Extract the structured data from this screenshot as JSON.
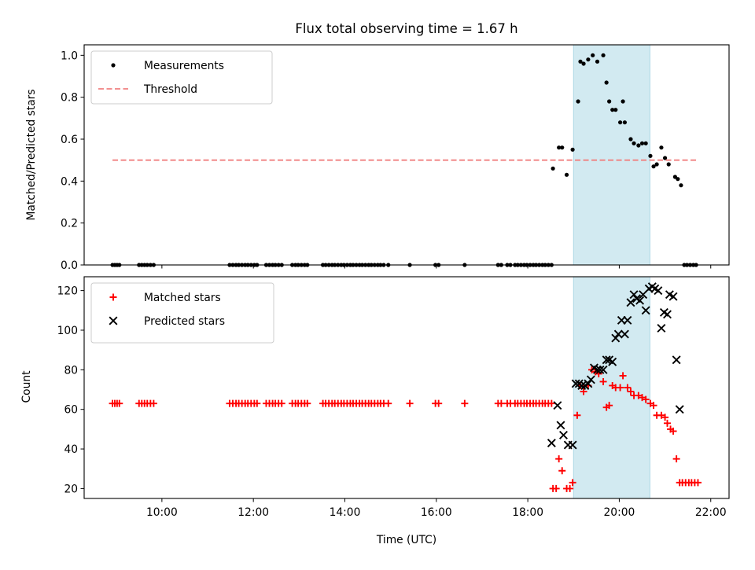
{
  "chart_data": [
    {
      "type": "scatter",
      "title": "Flux total observing time = 1.67 h",
      "xlabel": "",
      "ylabel": "Matched/Predicted stars",
      "xlim": [
        8.3,
        22.4
      ],
      "ylim": [
        0,
        1.05
      ],
      "yticks": [
        {
          "v": 0.0,
          "label": "0.0"
        },
        {
          "v": 0.2,
          "label": "0.2"
        },
        {
          "v": 0.4,
          "label": "0.4"
        },
        {
          "v": 0.6,
          "label": "0.6"
        },
        {
          "v": 0.8,
          "label": "0.8"
        },
        {
          "v": 1.0,
          "label": "1.0"
        }
      ],
      "shaded_interval": {
        "x": [
          19.0,
          20.67
        ],
        "color": "#add8e6"
      },
      "legend_position": "upper-left",
      "series": [
        {
          "name": "Measurements",
          "kind": "scatter",
          "marker": "dot",
          "color": "#000000",
          "x": [
            8.92,
            8.97,
            9.02,
            9.07,
            9.5,
            9.56,
            9.62,
            9.68,
            9.75,
            9.82,
            11.48,
            11.55,
            11.62,
            11.68,
            11.75,
            11.82,
            11.88,
            11.95,
            12.02,
            12.08,
            12.28,
            12.35,
            12.42,
            12.48,
            12.55,
            12.62,
            12.85,
            12.92,
            12.98,
            13.05,
            13.12,
            13.18,
            13.52,
            13.58,
            13.65,
            13.72,
            13.78,
            13.85,
            13.92,
            13.98,
            14.05,
            14.12,
            14.18,
            14.25,
            14.32,
            14.38,
            14.45,
            14.52,
            14.58,
            14.65,
            14.72,
            14.78,
            14.85,
            14.95,
            15.42,
            15.98,
            16.05,
            16.62,
            17.35,
            17.42,
            17.55,
            17.62,
            17.72,
            17.78,
            17.85,
            17.92,
            17.98,
            18.05,
            18.12,
            18.18,
            18.25,
            18.32,
            18.38,
            18.45,
            18.52,
            18.55,
            18.68,
            18.75,
            18.85,
            18.98,
            19.1,
            19.15,
            19.22,
            19.32,
            19.42,
            19.52,
            19.65,
            19.72,
            19.78,
            19.85,
            19.92,
            20.02,
            20.08,
            20.12,
            20.25,
            20.32,
            20.42,
            20.5,
            20.58,
            20.68,
            20.75,
            20.82,
            20.92,
            21.0,
            21.08,
            21.22,
            21.28,
            21.35,
            21.42,
            21.48,
            21.55,
            21.62,
            21.68
          ],
          "y": [
            0,
            0,
            0,
            0,
            0,
            0,
            0,
            0,
            0,
            0,
            0,
            0,
            0,
            0,
            0,
            0,
            0,
            0,
            0,
            0,
            0,
            0,
            0,
            0,
            0,
            0,
            0,
            0,
            0,
            0,
            0,
            0,
            0,
            0,
            0,
            0,
            0,
            0,
            0,
            0,
            0,
            0,
            0,
            0,
            0,
            0,
            0,
            0,
            0,
            0,
            0,
            0,
            0,
            0,
            0,
            0,
            0,
            0,
            0,
            0,
            0,
            0,
            0,
            0,
            0,
            0,
            0,
            0,
            0,
            0,
            0,
            0,
            0,
            0,
            0,
            0.46,
            0.56,
            0.56,
            0.43,
            0.55,
            0.78,
            0.97,
            0.96,
            0.98,
            1.0,
            0.97,
            1.0,
            0.87,
            0.78,
            0.74,
            0.74,
            0.68,
            0.78,
            0.68,
            0.6,
            0.58,
            0.57,
            0.58,
            0.58,
            0.52,
            0.47,
            0.48,
            0.56,
            0.51,
            0.48,
            0.42,
            0.41,
            0.38,
            0,
            0,
            0,
            0,
            0
          ]
        },
        {
          "name": "Threshold",
          "kind": "line",
          "style": "dashed",
          "color": "#f08080",
          "x": [
            8.92,
            21.72
          ],
          "y": [
            0.5,
            0.5
          ]
        }
      ]
    },
    {
      "type": "scatter",
      "title": "",
      "xlabel": "Time (UTC)",
      "ylabel": "Count",
      "xlim": [
        8.3,
        22.4
      ],
      "ylim": [
        15,
        127
      ],
      "xticks": [
        {
          "v": 10,
          "label": "10:00"
        },
        {
          "v": 12,
          "label": "12:00"
        },
        {
          "v": 14,
          "label": "14:00"
        },
        {
          "v": 16,
          "label": "16:00"
        },
        {
          "v": 18,
          "label": "18:00"
        },
        {
          "v": 20,
          "label": "20:00"
        },
        {
          "v": 22,
          "label": "22:00"
        }
      ],
      "yticks": [
        {
          "v": 20,
          "label": "20"
        },
        {
          "v": 40,
          "label": "40"
        },
        {
          "v": 60,
          "label": "60"
        },
        {
          "v": 80,
          "label": "80"
        },
        {
          "v": 100,
          "label": "100"
        },
        {
          "v": 120,
          "label": "120"
        }
      ],
      "shaded_interval": {
        "x": [
          19.0,
          20.67
        ],
        "color": "#add8e6"
      },
      "legend_position": "upper-left",
      "series": [
        {
          "name": "Matched stars",
          "kind": "scatter",
          "marker": "plus",
          "color": "#ff0000",
          "x": [
            8.92,
            8.97,
            9.02,
            9.07,
            9.5,
            9.56,
            9.62,
            9.68,
            9.75,
            9.82,
            11.48,
            11.55,
            11.62,
            11.68,
            11.75,
            11.82,
            11.88,
            11.95,
            12.02,
            12.08,
            12.28,
            12.35,
            12.42,
            12.48,
            12.55,
            12.62,
            12.85,
            12.92,
            12.98,
            13.05,
            13.12,
            13.18,
            13.52,
            13.58,
            13.65,
            13.72,
            13.78,
            13.85,
            13.92,
            13.98,
            14.05,
            14.12,
            14.18,
            14.25,
            14.32,
            14.38,
            14.45,
            14.52,
            14.58,
            14.65,
            14.72,
            14.78,
            14.85,
            14.95,
            15.42,
            15.98,
            16.05,
            16.62,
            17.35,
            17.42,
            17.55,
            17.62,
            17.72,
            17.78,
            17.85,
            17.92,
            17.98,
            18.05,
            18.12,
            18.18,
            18.25,
            18.32,
            18.38,
            18.45,
            18.52,
            18.55,
            18.62,
            18.68,
            18.75,
            18.85,
            18.92,
            18.98,
            19.08,
            19.15,
            19.22,
            19.32,
            19.4,
            19.48,
            19.55,
            19.65,
            19.72,
            19.78,
            19.85,
            19.92,
            20.02,
            20.08,
            20.18,
            20.25,
            20.32,
            20.42,
            20.5,
            20.58,
            20.68,
            20.75,
            20.82,
            20.92,
            21.0,
            21.05,
            21.12,
            21.18,
            21.25,
            21.32,
            21.38,
            21.45,
            21.52,
            21.58,
            21.65,
            21.72
          ],
          "y": [
            63,
            63,
            63,
            63,
            63,
            63,
            63,
            63,
            63,
            63,
            63,
            63,
            63,
            63,
            63,
            63,
            63,
            63,
            63,
            63,
            63,
            63,
            63,
            63,
            63,
            63,
            63,
            63,
            63,
            63,
            63,
            63,
            63,
            63,
            63,
            63,
            63,
            63,
            63,
            63,
            63,
            63,
            63,
            63,
            63,
            63,
            63,
            63,
            63,
            63,
            63,
            63,
            63,
            63,
            63,
            63,
            63,
            63,
            63,
            63,
            63,
            63,
            63,
            63,
            63,
            63,
            63,
            63,
            63,
            63,
            63,
            63,
            63,
            63,
            63,
            20,
            20,
            35,
            29,
            20,
            20,
            23,
            57,
            72,
            69,
            72,
            80,
            79,
            78,
            74,
            61,
            62,
            72,
            71,
            71,
            77,
            71,
            69,
            67,
            67,
            66,
            65,
            63,
            62,
            57,
            57,
            56,
            53,
            50,
            49,
            35,
            23,
            23,
            23,
            23,
            23,
            23,
            23
          ]
        },
        {
          "name": "Predicted stars",
          "kind": "scatter",
          "marker": "x",
          "color": "#000000",
          "x": [
            18.52,
            18.65,
            18.72,
            18.78,
            18.88,
            18.98,
            19.05,
            19.12,
            19.18,
            19.25,
            19.32,
            19.38,
            19.45,
            19.52,
            19.58,
            19.65,
            19.72,
            19.78,
            19.85,
            19.92,
            19.98,
            20.05,
            20.12,
            20.18,
            20.25,
            20.32,
            20.38,
            20.45,
            20.52,
            20.58,
            20.65,
            20.72,
            20.78,
            20.85,
            20.92,
            20.98,
            21.05,
            21.1,
            21.18,
            21.25,
            21.32
          ],
          "y": [
            43,
            62,
            52,
            47,
            42,
            42,
            73,
            73,
            72,
            72,
            73,
            75,
            81,
            80,
            80,
            80,
            85,
            85,
            84,
            96,
            98,
            105,
            98,
            105,
            114,
            118,
            116,
            115,
            118,
            110,
            121,
            122,
            121,
            120,
            101,
            109,
            108,
            118,
            117,
            85,
            60
          ]
        }
      ]
    }
  ]
}
